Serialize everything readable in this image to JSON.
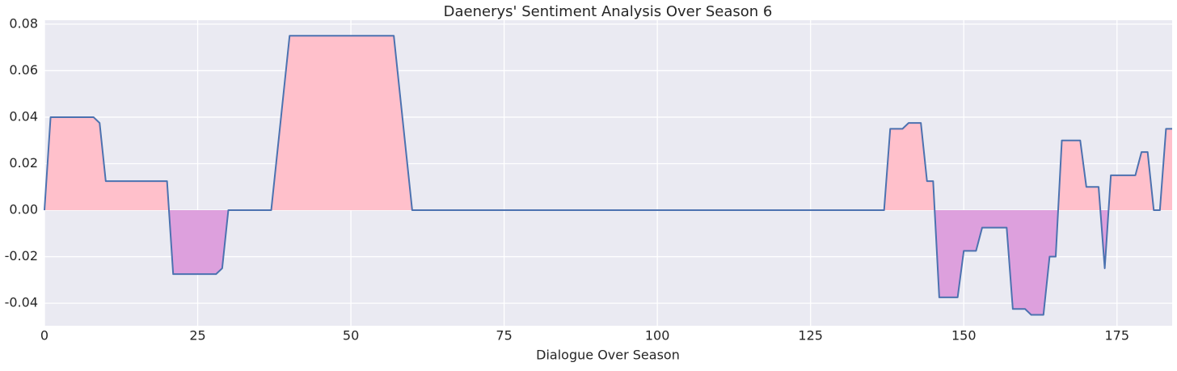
{
  "chart_data": {
    "type": "area_line",
    "title": "Daenerys' Sentiment Analysis Over Season 6",
    "x_label": "Dialogue Over Season",
    "x": [
      0,
      1,
      2,
      3,
      4,
      5,
      6,
      7,
      8,
      9,
      10,
      11,
      12,
      13,
      14,
      15,
      16,
      17,
      18,
      19,
      20,
      21,
      22,
      23,
      24,
      25,
      26,
      27,
      28,
      29,
      30,
      31,
      32,
      33,
      34,
      35,
      36,
      37,
      38,
      39,
      40,
      41,
      42,
      43,
      44,
      45,
      46,
      47,
      48,
      49,
      50,
      51,
      52,
      53,
      54,
      55,
      56,
      57,
      58,
      59,
      60,
      61,
      62,
      63,
      64,
      65,
      66,
      67,
      68,
      69,
      70,
      71,
      72,
      73,
      74,
      75,
      76,
      77,
      78,
      79,
      80,
      81,
      82,
      83,
      84,
      85,
      86,
      87,
      88,
      89,
      90,
      91,
      92,
      93,
      94,
      95,
      96,
      97,
      98,
      99,
      100,
      101,
      102,
      103,
      104,
      105,
      106,
      107,
      108,
      109,
      110,
      111,
      112,
      113,
      114,
      115,
      116,
      117,
      118,
      119,
      120,
      121,
      122,
      123,
      124,
      125,
      126,
      127,
      128,
      129,
      130,
      131,
      132,
      133,
      134,
      135,
      136,
      137,
      138,
      139,
      140,
      141,
      142,
      143,
      144,
      145,
      146,
      147,
      148,
      149,
      150,
      151,
      152,
      153,
      154,
      155,
      156,
      157,
      158,
      159,
      160,
      161,
      162,
      163,
      164,
      165,
      166,
      167,
      168,
      169,
      170,
      171,
      172,
      173,
      174,
      175,
      176,
      177,
      178,
      179,
      180,
      181,
      182,
      183,
      184
    ],
    "values": [
      0,
      0.04,
      0.04,
      0.04,
      0.04,
      0.04,
      0.04,
      0.04,
      0.04,
      0.0375,
      0.0125,
      0.0125,
      0.0125,
      0.0125,
      0.0125,
      0.0125,
      0.0125,
      0.0125,
      0.0125,
      0.0125,
      0.0125,
      -0.0275,
      -0.0275,
      -0.0275,
      -0.0275,
      -0.0275,
      -0.0275,
      -0.0275,
      -0.0275,
      -0.025,
      0,
      0,
      0,
      0,
      0,
      0,
      0,
      0,
      0.025,
      0.05,
      0.075,
      0.075,
      0.075,
      0.075,
      0.075,
      0.075,
      0.075,
      0.075,
      0.075,
      0.075,
      0.075,
      0.075,
      0.075,
      0.075,
      0.075,
      0.075,
      0.075,
      0.075,
      0.05,
      0.025,
      0,
      0,
      0,
      0,
      0,
      0,
      0,
      0,
      0,
      0,
      0,
      0,
      0,
      0,
      0,
      0,
      0,
      0,
      0,
      0,
      0,
      0,
      0,
      0,
      0,
      0,
      0,
      0,
      0,
      0,
      0,
      0,
      0,
      0,
      0,
      0,
      0,
      0,
      0,
      0,
      0,
      0,
      0,
      0,
      0,
      0,
      0,
      0,
      0,
      0,
      0,
      0,
      0,
      0,
      0,
      0,
      0,
      0,
      0,
      0,
      0,
      0,
      0,
      0,
      0,
      0,
      0,
      0,
      0,
      0,
      0,
      0,
      0,
      0,
      0,
      0,
      0,
      0,
      0.035,
      0.035,
      0.035,
      0.0375,
      0.0375,
      0.0375,
      0.0125,
      0.0125,
      -0.0375,
      -0.0375,
      -0.0375,
      -0.0375,
      -0.0175,
      -0.0175,
      -0.0175,
      -0.0075,
      -0.0075,
      -0.0075,
      -0.0075,
      -0.0075,
      -0.0425,
      -0.0425,
      -0.0425,
      -0.045,
      -0.045,
      -0.045,
      -0.02,
      -0.02,
      0.03,
      0.03,
      0.03,
      0.03,
      0.01,
      0.01,
      0.01,
      -0.025,
      0.015,
      0.015,
      0.015,
      0.015,
      0.015,
      0.025,
      0.025,
      0,
      0,
      0.035,
      0.035
    ],
    "color": "#4c72b0",
    "fill_positive": "pink",
    "fill_negative": "plum",
    "xlim": [
      0,
      184
    ],
    "xticks": [
      0,
      25,
      50,
      75,
      100,
      125,
      150,
      175
    ],
    "ylim": [
      -0.0497,
      0.0817
    ],
    "yticks": [
      -0.04,
      -0.02,
      {
        "value": 0,
        "label": "0.00"
      },
      0.02,
      0.04,
      0.06,
      0.08
    ],
    "grid": true
  }
}
